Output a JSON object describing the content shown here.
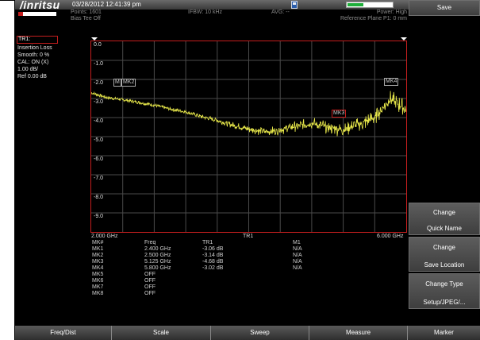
{
  "header": {
    "brand": "/inritsu",
    "datetime": "03/28/2012 12:41:39 pm",
    "save_icon": "floppy-disk-icon",
    "battery_level": 0.35
  },
  "info": {
    "points": "Points: 1601",
    "bias": "Bias Tee Off",
    "ifbw": "IFBW: 10 kHz",
    "avg": "AVG: --",
    "power": "Power: High",
    "ref_plane": "Reference Plane P1: 0 mm"
  },
  "trace": {
    "title": "TR1:",
    "lines": [
      "Insertion Loss",
      "Smooth: 0 %",
      "CAL: ON (X)",
      "1.00 dB/",
      "Ref 0.00 dB"
    ]
  },
  "plot": {
    "y_ticks": [
      "0.0",
      "-1.0",
      "-2.0",
      "-3.0",
      "-4.0",
      "-5.0",
      "-6.0",
      "-7.0",
      "-8.0",
      "-9.0"
    ],
    "x_start": "2.000 GHz",
    "x_end": "6.000 GHz",
    "center_label": "TR1",
    "marker_labels": [
      "M",
      "MK2",
      "MK3",
      "MK4"
    ],
    "trace_color": "#e8e84a"
  },
  "chart_data": {
    "type": "line",
    "xlabel": "",
    "ylabel": "",
    "xlim": [
      2.0,
      6.0
    ],
    "ylim": [
      -10,
      0
    ],
    "x": [
      2.0,
      2.2,
      2.4,
      2.6,
      2.8,
      3.0,
      3.2,
      3.4,
      3.6,
      3.8,
      4.0,
      4.2,
      4.4,
      4.6,
      4.8,
      5.0,
      5.2,
      5.4,
      5.6,
      5.8,
      6.0
    ],
    "series": [
      {
        "values": [
          -2.7,
          -2.95,
          -3.06,
          -3.2,
          -3.35,
          -3.55,
          -3.7,
          -3.95,
          -4.15,
          -4.4,
          -4.6,
          -4.75,
          -4.65,
          -4.45,
          -4.3,
          -4.5,
          -4.65,
          -4.35,
          -4.0,
          -3.02,
          -3.6
        ]
      }
    ]
  },
  "markers": {
    "headers": [
      "MK#",
      "Freq",
      "TR1",
      "M1"
    ],
    "rows": [
      {
        "name": "MK1",
        "freq": "2.400 GHz",
        "val": "-3.06 dB",
        "m1": "N/A"
      },
      {
        "name": "MK2",
        "freq": "2.500 GHz",
        "val": "-3.14 dB",
        "m1": "N/A"
      },
      {
        "name": "MK3",
        "freq": "5.125 GHz",
        "val": "-4.68 dB",
        "m1": "N/A"
      },
      {
        "name": "MK4",
        "freq": "5.800 GHz",
        "val": "-3.02 dB",
        "m1": "N/A"
      },
      {
        "name": "MK5",
        "freq": "OFF",
        "val": "",
        "m1": ""
      },
      {
        "name": "MK6",
        "freq": "OFF",
        "val": "",
        "m1": ""
      },
      {
        "name": "MK7",
        "freq": "OFF",
        "val": "",
        "m1": ""
      },
      {
        "name": "MK8",
        "freq": "OFF",
        "val": "",
        "m1": ""
      }
    ]
  },
  "softkeys": {
    "save": "Save",
    "quick_name": {
      "top": "Change",
      "bottom": "Quick Name"
    },
    "save_location": {
      "top": "Change",
      "bottom": "Save Location"
    },
    "change_type": {
      "top": "Change Type",
      "bottom": "Setup/JPEG/..."
    }
  },
  "bottom_menu": [
    "Freq/Dist",
    "Scale",
    "Sweep",
    "Measure",
    "Marker"
  ]
}
